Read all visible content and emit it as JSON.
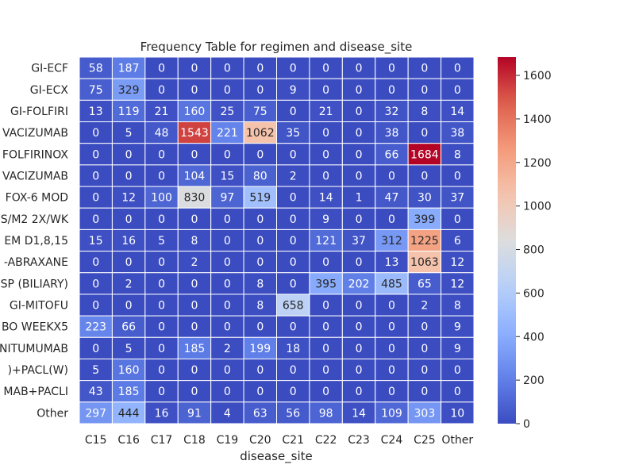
{
  "chart_data": {
    "type": "heatmap",
    "title": "Frequency Table for regimen and disease_site",
    "xlabel": "disease_site",
    "ylabel": "",
    "columns": [
      "C15",
      "C16",
      "C17",
      "C18",
      "C19",
      "C20",
      "C21",
      "C22",
      "C23",
      "C24",
      "C25",
      "Other"
    ],
    "rows": [
      "GI-ECF",
      "GI-ECX",
      "GI-FOLFIRI",
      "VACIZUMAB",
      "FOLFIRINOX",
      "VACIZUMAB",
      "FOX-6 MOD",
      "S/M2 2X/WK",
      "EM D1,8,15",
      "-ABRAXANE",
      "SP (BILIARY)",
      "GI-MITOFU",
      "BO WEEKX5",
      "NITUMUMAB",
      ")+PACL(W)",
      "MAB+PACLI",
      "Other"
    ],
    "values": [
      [
        58,
        187,
        0,
        0,
        0,
        0,
        0,
        0,
        0,
        0,
        0,
        0
      ],
      [
        75,
        329,
        0,
        0,
        0,
        0,
        9,
        0,
        0,
        0,
        0,
        0
      ],
      [
        13,
        119,
        21,
        160,
        25,
        75,
        0,
        21,
        0,
        32,
        8,
        14
      ],
      [
        0,
        5,
        48,
        1543,
        221,
        1062,
        35,
        0,
        0,
        38,
        0,
        38
      ],
      [
        0,
        0,
        0,
        0,
        0,
        0,
        0,
        0,
        0,
        66,
        1684,
        8
      ],
      [
        0,
        0,
        0,
        104,
        15,
        80,
        2,
        0,
        0,
        0,
        0,
        0
      ],
      [
        0,
        12,
        100,
        830,
        97,
        519,
        0,
        14,
        1,
        47,
        30,
        37
      ],
      [
        0,
        0,
        0,
        0,
        0,
        0,
        0,
        9,
        0,
        0,
        399,
        0
      ],
      [
        15,
        16,
        5,
        8,
        0,
        0,
        0,
        121,
        37,
        312,
        1225,
        6
      ],
      [
        0,
        0,
        0,
        2,
        0,
        0,
        0,
        0,
        0,
        13,
        1063,
        12
      ],
      [
        0,
        2,
        0,
        0,
        0,
        8,
        0,
        395,
        202,
        485,
        65,
        12
      ],
      [
        0,
        0,
        0,
        0,
        0,
        8,
        658,
        0,
        0,
        0,
        2,
        8
      ],
      [
        223,
        66,
        0,
        0,
        0,
        0,
        0,
        0,
        0,
        0,
        0,
        9
      ],
      [
        0,
        5,
        0,
        185,
        2,
        199,
        18,
        0,
        0,
        0,
        0,
        9
      ],
      [
        5,
        160,
        0,
        0,
        0,
        0,
        0,
        0,
        0,
        0,
        0,
        0
      ],
      [
        43,
        185,
        0,
        0,
        0,
        0,
        0,
        0,
        0,
        0,
        0,
        0
      ],
      [
        297,
        444,
        16,
        91,
        4,
        63,
        56,
        98,
        14,
        109,
        303,
        10
      ]
    ],
    "colormap": "coolwarm",
    "vmin": 0,
    "vmax": 1684,
    "colorbar_ticks": [
      "0",
      "200",
      "400",
      "600",
      "800",
      "1000",
      "1200",
      "1400",
      "1600"
    ],
    "cell_labels": true,
    "grid": false
  }
}
